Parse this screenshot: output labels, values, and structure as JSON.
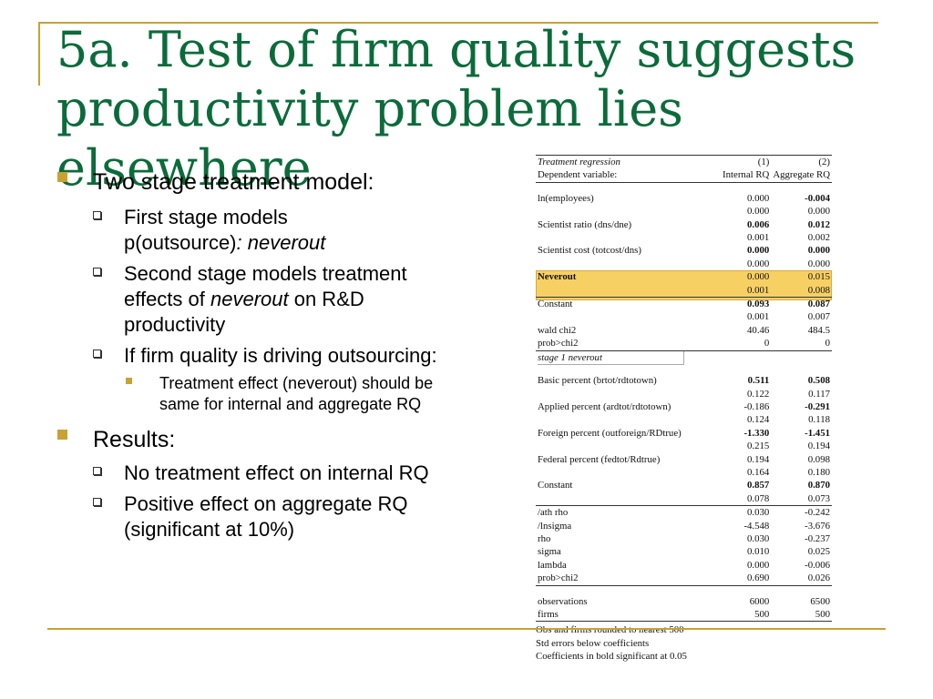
{
  "title": [
    "5a. Test of firm quality suggests",
    "productivity problem lies",
    "elsewhere"
  ],
  "bullets": {
    "b1": "Two stage treatment model:",
    "b1_1a": "First stage models",
    "b1_1b": "p(outsource)",
    "b1_1c": ": neverout",
    "b1_2a": "Second stage models treatment effects of ",
    "b1_2b": "neverout",
    "b1_2c": " on R&D productivity",
    "b1_3": "If firm quality is driving outsourcing:",
    "b1_3_1": "Treatment effect (neverout) should be same for internal and aggregate RQ",
    "b2": "Results:",
    "b2_1": "No treatment effect on internal RQ",
    "b2_2": "Positive effect on aggregate RQ (significant at 10%)"
  },
  "table": {
    "header": {
      "label": "Treatment regression",
      "c1": "(1)",
      "c2": "(2)"
    },
    "dep": {
      "label": "Dependent variable:",
      "c1": "Internal RQ",
      "c2": "Aggregate RQ"
    },
    "rows": [
      {
        "label": "ln(employees)",
        "c1": "0.000",
        "c2": "-0.004",
        "b1": false,
        "b2": true
      },
      {
        "label": "",
        "c1": "0.000",
        "c2": "0.000"
      },
      {
        "label": "Scientist ratio (dns/dne)",
        "c1": "0.006",
        "c2": "0.012",
        "b1": true,
        "b2": true
      },
      {
        "label": "",
        "c1": "0.001",
        "c2": "0.002"
      },
      {
        "label": "Scientist cost (totcost/dns)",
        "c1": "0.000",
        "c2": "0.000",
        "b1": true,
        "b2": true
      },
      {
        "label": "",
        "c1": "0.000",
        "c2": "0.000"
      },
      {
        "label": "Neverout",
        "c1": "0.000",
        "c2": "0.015",
        "lb": true
      },
      {
        "label": "",
        "c1": "0.001",
        "c2": "0.008"
      },
      {
        "label": "Constant",
        "c1": "0.093",
        "c2": "0.087",
        "b1": true,
        "b2": true
      },
      {
        "label": "",
        "c1": "0.001",
        "c2": "0.007"
      },
      {
        "label": "wald chi2",
        "c1": "40.46",
        "c2": "484.5"
      },
      {
        "label": "prob>chi2",
        "c1": "0",
        "c2": "0"
      }
    ],
    "stage1_label": "stage 1 neverout",
    "rows2": [
      {
        "label": "Basic percent (brtot/rdtotown)",
        "c1": "0.511",
        "c2": "0.508",
        "b1": true,
        "b2": true
      },
      {
        "label": "",
        "c1": "0.122",
        "c2": "0.117"
      },
      {
        "label": "Applied percent (ardtot/rdtotown)",
        "c1": "-0.186",
        "c2": "-0.291",
        "b2": true
      },
      {
        "label": "",
        "c1": "0.124",
        "c2": "0.118"
      },
      {
        "label": "Foreign percent (outforeign/RDtrue)",
        "c1": "-1.330",
        "c2": "-1.451",
        "b1": true,
        "b2": true
      },
      {
        "label": "",
        "c1": "0.215",
        "c2": "0.194"
      },
      {
        "label": "Federal percent (fedtot/Rdtrue)",
        "c1": "0.194",
        "c2": "0.098"
      },
      {
        "label": "",
        "c1": "0.164",
        "c2": "0.180"
      },
      {
        "label": "Constant",
        "c1": "0.857",
        "c2": "0.870",
        "b1": true,
        "b2": true
      },
      {
        "label": "",
        "c1": "0.078",
        "c2": "0.073"
      }
    ],
    "rows3": [
      {
        "label": "/ath rho",
        "c1": "0.030",
        "c2": "-0.242"
      },
      {
        "label": "/lnsigma",
        "c1": "-4.548",
        "c2": "-3.676"
      },
      {
        "label": "rho",
        "c1": "0.030",
        "c2": "-0.237"
      },
      {
        "label": "sigma",
        "c1": "0.010",
        "c2": "0.025"
      },
      {
        "label": "lambda",
        "c1": "0.000",
        "c2": "-0.006"
      },
      {
        "label": "prob>chi2",
        "c1": "0.690",
        "c2": "0.026"
      }
    ],
    "rows4": [
      {
        "label": "observations",
        "c1": "6000",
        "c2": "6500"
      },
      {
        "label": "firms",
        "c1": "500",
        "c2": "500"
      }
    ],
    "notes": [
      "Obs and firms rounded to nearest 500",
      "Std errors below coefficients",
      "Coefficients in bold significant at 0.05"
    ]
  },
  "colors": {
    "title": "#0b6b3a",
    "accent": "#c8a233",
    "highlight": "#f6c84a"
  }
}
